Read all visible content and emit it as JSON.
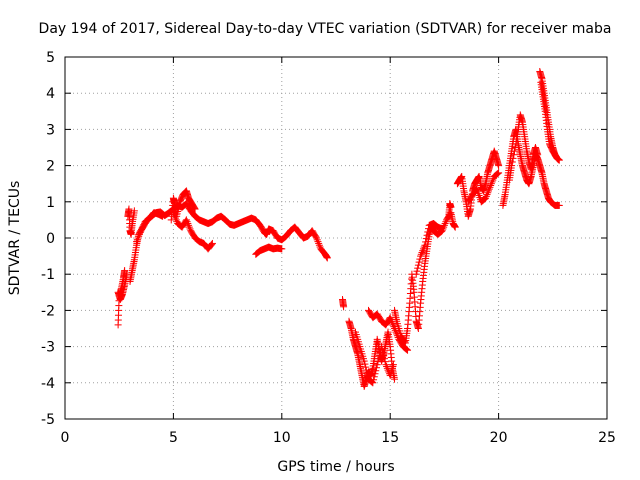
{
  "chart_data": {
    "type": "scatter",
    "title": "Day 194 of 2017, Sidereal Day-to-day VTEC variation (SDTVAR) for receiver maba",
    "xlabel": "GPS time / hours",
    "ylabel": "SDTVAR / TECUs",
    "xlim": [
      0,
      25
    ],
    "ylim": [
      -5,
      5
    ],
    "xticks": [
      0,
      5,
      10,
      15,
      20,
      25
    ],
    "yticks": [
      -5,
      -4,
      -3,
      -2,
      -1,
      0,
      1,
      2,
      3,
      4,
      5
    ],
    "xtick_labels": [
      "0",
      "5",
      "10",
      "15",
      "20",
      "25"
    ],
    "ytick_labels": [
      "-5",
      "-4",
      "-3",
      "-2",
      "-1",
      "0",
      "1",
      "2",
      "3",
      "4",
      "5"
    ],
    "grid": true,
    "marker": "+",
    "color": "#ff0000",
    "series": [
      {
        "name": "SDTVAR",
        "segments": [
          [
            [
              2.45,
              -2.4
            ],
            [
              2.5,
              -1.6
            ],
            [
              2.6,
              -1.4
            ],
            [
              2.7,
              -1.1
            ],
            [
              2.75,
              -0.9
            ]
          ],
          [
            [
              2.45,
              -1.5
            ],
            [
              2.55,
              -1.7
            ],
            [
              2.65,
              -1.55
            ],
            [
              2.75,
              -1.3
            ],
            [
              2.85,
              -1.0
            ]
          ],
          [
            [
              2.9,
              0.6
            ],
            [
              2.95,
              0.8
            ],
            [
              3.0,
              0.2
            ],
            [
              3.05,
              0.1
            ],
            [
              3.1,
              0.4
            ],
            [
              3.2,
              0.75
            ]
          ],
          [
            [
              3.0,
              -1.2
            ],
            [
              3.1,
              -0.9
            ],
            [
              3.2,
              -0.6
            ],
            [
              3.3,
              -0.2
            ],
            [
              3.4,
              0.1
            ],
            [
              3.6,
              0.3
            ],
            [
              3.8,
              0.5
            ],
            [
              4.0,
              0.6
            ],
            [
              4.2,
              0.7
            ],
            [
              4.4,
              0.72
            ],
            [
              4.6,
              0.62
            ],
            [
              4.8,
              0.7
            ],
            [
              5.0,
              0.8
            ],
            [
              5.2,
              0.9
            ],
            [
              5.4,
              0.85
            ],
            [
              5.6,
              0.95
            ],
            [
              5.8,
              0.75
            ],
            [
              6.0,
              0.6
            ],
            [
              6.2,
              0.5
            ],
            [
              6.4,
              0.45
            ],
            [
              6.6,
              0.4
            ],
            [
              6.8,
              0.45
            ],
            [
              7.0,
              0.55
            ],
            [
              7.2,
              0.6
            ],
            [
              7.4,
              0.5
            ],
            [
              7.6,
              0.38
            ],
            [
              7.8,
              0.35
            ],
            [
              8.0,
              0.4
            ],
            [
              8.2,
              0.45
            ],
            [
              8.4,
              0.5
            ],
            [
              8.6,
              0.55
            ],
            [
              8.8,
              0.5
            ],
            [
              9.0,
              0.35
            ],
            [
              9.2,
              0.15
            ],
            [
              9.3,
              0.1
            ],
            [
              9.4,
              0.25
            ],
            [
              9.6,
              0.2
            ],
            [
              9.8,
              0.0
            ],
            [
              10.0,
              -0.05
            ],
            [
              10.2,
              0.05
            ],
            [
              10.4,
              0.2
            ],
            [
              10.6,
              0.3
            ],
            [
              10.8,
              0.15
            ],
            [
              11.0,
              0.0
            ],
            [
              11.2,
              0.05
            ],
            [
              11.4,
              0.2
            ],
            [
              11.6,
              0.0
            ],
            [
              11.8,
              -0.3
            ],
            [
              12.0,
              -0.45
            ],
            [
              12.1,
              -0.55
            ]
          ],
          [
            [
              3.3,
              -0.1
            ],
            [
              3.5,
              0.2
            ],
            [
              3.7,
              0.45
            ],
            [
              3.9,
              0.55
            ],
            [
              4.1,
              0.7
            ],
            [
              4.3,
              0.66
            ],
            [
              4.5,
              0.6
            ]
          ],
          [
            [
              4.9,
              0.5
            ],
            [
              5.0,
              1.1
            ],
            [
              5.05,
              0.95
            ],
            [
              5.15,
              0.6
            ],
            [
              5.3,
              1.0
            ],
            [
              5.45,
              1.2
            ],
            [
              5.6,
              1.3
            ],
            [
              5.7,
              1.1
            ],
            [
              5.85,
              0.95
            ],
            [
              6.0,
              0.8
            ]
          ],
          [
            [
              5.0,
              0.7
            ],
            [
              5.2,
              0.4
            ],
            [
              5.4,
              0.3
            ],
            [
              5.6,
              0.5
            ],
            [
              5.8,
              0.2
            ],
            [
              6.0,
              0.0
            ],
            [
              6.2,
              -0.1
            ],
            [
              6.4,
              -0.15
            ],
            [
              6.6,
              -0.3
            ],
            [
              6.8,
              -0.15
            ]
          ],
          [
            [
              8.8,
              -0.45
            ],
            [
              9.0,
              -0.35
            ],
            [
              9.2,
              -0.3
            ],
            [
              9.4,
              -0.25
            ],
            [
              9.6,
              -0.3
            ],
            [
              9.8,
              -0.28
            ],
            [
              10.0,
              -0.3
            ]
          ],
          [
            [
              12.8,
              -1.7
            ],
            [
              12.85,
              -1.9
            ]
          ],
          [
            [
              13.1,
              -2.3
            ],
            [
              13.2,
              -2.5
            ],
            [
              13.3,
              -2.8
            ],
            [
              13.4,
              -3.0
            ],
            [
              13.5,
              -3.2
            ],
            [
              13.6,
              -3.5
            ],
            [
              13.7,
              -3.8
            ],
            [
              13.8,
              -4.1
            ],
            [
              13.9,
              -3.9
            ],
            [
              14.0,
              -3.7
            ],
            [
              14.1,
              -3.8
            ],
            [
              14.2,
              -3.6
            ],
            [
              14.3,
              -3.2
            ],
            [
              14.4,
              -2.8
            ],
            [
              14.5,
              -3.1
            ],
            [
              14.6,
              -3.4
            ],
            [
              14.7,
              -3.2
            ],
            [
              14.8,
              -2.9
            ],
            [
              14.9,
              -2.6
            ],
            [
              15.0,
              -3.0
            ],
            [
              15.1,
              -3.6
            ],
            [
              15.2,
              -3.9
            ]
          ],
          [
            [
              13.4,
              -2.6
            ],
            [
              13.6,
              -3.0
            ],
            [
              13.8,
              -3.4
            ],
            [
              14.0,
              -3.9
            ],
            [
              14.2,
              -4.0
            ],
            [
              14.4,
              -3.5
            ],
            [
              14.6,
              -3.0
            ],
            [
              14.8,
              -3.5
            ],
            [
              15.0,
              -3.8
            ],
            [
              15.15,
              -3.5
            ]
          ],
          [
            [
              14.0,
              -2.0
            ],
            [
              14.2,
              -2.2
            ],
            [
              14.4,
              -2.1
            ],
            [
              14.6,
              -2.3
            ],
            [
              14.8,
              -2.4
            ],
            [
              15.0,
              -2.2
            ],
            [
              15.2,
              -2.5
            ],
            [
              15.4,
              -2.8
            ],
            [
              15.6,
              -3.0
            ],
            [
              15.8,
              -3.1
            ]
          ],
          [
            [
              15.2,
              -2.0
            ],
            [
              15.3,
              -2.3
            ],
            [
              15.5,
              -2.7
            ],
            [
              15.7,
              -2.9
            ],
            [
              15.8,
              -2.5
            ],
            [
              15.9,
              -1.8
            ],
            [
              16.0,
              -1.0
            ],
            [
              16.1,
              -1.5
            ],
            [
              16.2,
              -2.3
            ],
            [
              16.3,
              -2.5
            ],
            [
              16.4,
              -1.8
            ],
            [
              16.5,
              -1.2
            ],
            [
              16.6,
              -0.7
            ],
            [
              16.7,
              -0.3
            ],
            [
              16.8,
              0.1
            ],
            [
              16.9,
              0.3
            ],
            [
              17.0,
              0.2
            ],
            [
              17.2,
              0.1
            ],
            [
              17.4,
              0.2
            ],
            [
              17.6,
              0.5
            ],
            [
              17.8,
              0.7
            ],
            [
              17.9,
              0.4
            ],
            [
              18.0,
              0.3
            ]
          ],
          [
            [
              16.2,
              -1.0
            ],
            [
              16.4,
              -0.5
            ],
            [
              16.6,
              -0.2
            ],
            [
              16.8,
              0.35
            ],
            [
              17.0,
              0.4
            ],
            [
              17.2,
              0.3
            ],
            [
              17.4,
              0.25
            ]
          ],
          [
            [
              17.7,
              0.6
            ],
            [
              17.75,
              0.95
            ],
            [
              17.8,
              0.85
            ]
          ],
          [
            [
              18.1,
              1.5
            ],
            [
              18.2,
              1.6
            ],
            [
              18.3,
              1.7
            ],
            [
              18.4,
              1.3
            ],
            [
              18.5,
              1.0
            ],
            [
              18.6,
              0.6
            ],
            [
              18.7,
              0.8
            ],
            [
              18.8,
              1.3
            ],
            [
              18.9,
              1.5
            ],
            [
              19.0,
              1.6
            ],
            [
              19.1,
              1.7
            ],
            [
              19.2,
              1.4
            ],
            [
              19.3,
              1.3
            ],
            [
              19.4,
              1.5
            ],
            [
              19.5,
              1.8
            ],
            [
              19.6,
              2.0
            ],
            [
              19.7,
              2.2
            ],
            [
              19.8,
              2.4
            ],
            [
              19.9,
              2.2
            ],
            [
              20.0,
              2.0
            ]
          ],
          [
            [
              18.6,
              1.0
            ],
            [
              18.8,
              1.2
            ],
            [
              19.0,
              1.35
            ],
            [
              19.2,
              1.0
            ],
            [
              19.4,
              1.1
            ],
            [
              19.6,
              1.4
            ],
            [
              19.8,
              1.7
            ],
            [
              20.0,
              1.8
            ]
          ],
          [
            [
              20.2,
              0.9
            ],
            [
              20.3,
              1.2
            ],
            [
              20.4,
              1.6
            ],
            [
              20.5,
              2.0
            ],
            [
              20.6,
              2.4
            ],
            [
              20.7,
              2.8
            ],
            [
              20.8,
              3.0
            ],
            [
              20.9,
              2.6
            ],
            [
              21.0,
              2.3
            ],
            [
              21.1,
              2.0
            ],
            [
              21.2,
              1.8
            ],
            [
              21.3,
              1.6
            ],
            [
              21.4,
              1.5
            ],
            [
              21.5,
              1.7
            ],
            [
              21.6,
              2.0
            ],
            [
              21.7,
              2.3
            ],
            [
              21.8,
              2.2
            ],
            [
              21.9,
              2.0
            ],
            [
              22.0,
              1.8
            ],
            [
              22.1,
              1.5
            ],
            [
              22.2,
              1.3
            ],
            [
              22.3,
              1.1
            ],
            [
              22.4,
              1.0
            ],
            [
              22.6,
              0.9
            ],
            [
              22.8,
              0.9
            ]
          ],
          [
            [
              20.5,
              1.6
            ],
            [
              20.6,
              2.0
            ],
            [
              20.8,
              2.6
            ],
            [
              20.9,
              3.0
            ],
            [
              21.0,
              3.4
            ],
            [
              21.1,
              3.2
            ],
            [
              21.2,
              2.8
            ],
            [
              21.3,
              2.4
            ],
            [
              21.4,
              2.1
            ],
            [
              21.5,
              1.9
            ],
            [
              21.6,
              2.3
            ],
            [
              21.7,
              2.5
            ],
            [
              21.8,
              2.3
            ]
          ],
          [
            [
              21.9,
              4.6
            ],
            [
              22.0,
              4.4
            ],
            [
              22.1,
              4.0
            ],
            [
              22.2,
              3.6
            ],
            [
              22.3,
              3.2
            ],
            [
              22.4,
              2.8
            ],
            [
              22.5,
              2.5
            ],
            [
              22.6,
              2.3
            ],
            [
              22.7,
              2.2
            ],
            [
              22.8,
              2.15
            ]
          ],
          [
            [
              21.95,
              4.3
            ],
            [
              22.05,
              3.9
            ],
            [
              22.15,
              3.5
            ],
            [
              22.25,
              3.0
            ],
            [
              22.35,
              2.6
            ],
            [
              22.5,
              2.4
            ],
            [
              22.65,
              2.25
            ]
          ]
        ]
      }
    ]
  }
}
